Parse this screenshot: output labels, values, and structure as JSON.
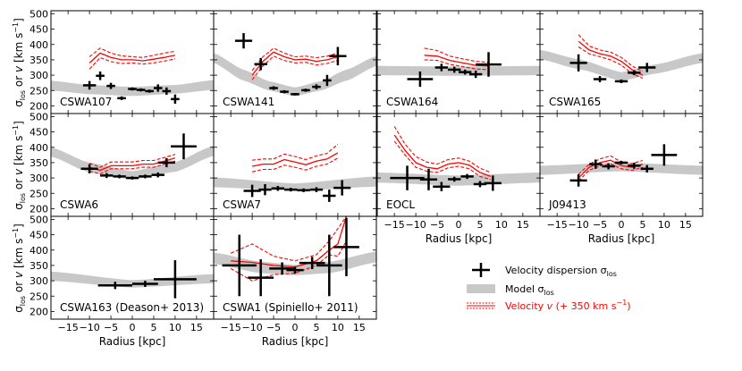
{
  "figure": {
    "y_axis_label": "σlos or v [km s⁻¹]",
    "y_axis_label_parts": {
      "sigma": "σ",
      "sigma_sub": "los",
      "or": " or ",
      "v": "v",
      "unit_open": " [km s",
      "unit_exp": "−1",
      "unit_close": "]"
    },
    "x_axis_label": "Radius [kpc]",
    "xlim": [
      -19,
      19
    ],
    "ylim": [
      175,
      510
    ],
    "x_ticks": [
      -15,
      -10,
      -5,
      0,
      5,
      10,
      15
    ],
    "y_ticks": [
      200,
      250,
      300,
      350,
      400,
      450,
      500
    ],
    "colors": {
      "model_band": "#c8c8c8",
      "velocity": "#ff0000",
      "dispersion": "#000000"
    }
  },
  "legend": {
    "items": [
      {
        "key": "dispersion",
        "label": "Velocity dispersion σ",
        "sub": "los"
      },
      {
        "key": "model",
        "label": "Model σ",
        "sub": "los"
      },
      {
        "key": "velocity",
        "label": "Velocity ",
        "italic": "v",
        "suffix": " (+ 350 km s",
        "exp": "−1",
        "close": ")"
      }
    ]
  },
  "chart_data": [
    {
      "name": "CSWA107",
      "type": "scatter",
      "dispersion": [
        {
          "x": -10,
          "y": 267,
          "xerr": 1.5,
          "yerr": 14
        },
        {
          "x": -7.5,
          "y": 298,
          "xerr": 1,
          "yerr": 14
        },
        {
          "x": -5,
          "y": 265,
          "xerr": 1,
          "yerr": 10
        },
        {
          "x": -2.5,
          "y": 225,
          "xerr": 1,
          "yerr": 6
        },
        {
          "x": 0,
          "y": 255,
          "xerr": 1,
          "yerr": 5
        },
        {
          "x": 2,
          "y": 252,
          "xerr": 1,
          "yerr": 5
        },
        {
          "x": 4,
          "y": 248,
          "xerr": 1,
          "yerr": 5
        },
        {
          "x": 6,
          "y": 258,
          "xerr": 1,
          "yerr": 12
        },
        {
          "x": 8,
          "y": 248,
          "xerr": 1,
          "yerr": 12
        },
        {
          "x": 10,
          "y": 222,
          "xerr": 1,
          "yerr": 15
        }
      ],
      "model": [
        {
          "x": -19,
          "lo": 250,
          "hi": 282
        },
        {
          "x": -10,
          "lo": 238,
          "hi": 268
        },
        {
          "x": 0,
          "lo": 232,
          "hi": 262
        },
        {
          "x": 10,
          "lo": 240,
          "hi": 268
        },
        {
          "x": 19,
          "lo": 252,
          "hi": 284
        }
      ],
      "velocity": {
        "x": [
          -10,
          -7.5,
          -5,
          -2.5,
          0,
          2.5,
          5,
          7.5,
          10
        ],
        "mid": [
          340,
          372,
          358,
          350,
          350,
          347,
          352,
          358,
          365
        ],
        "lo": [
          320,
          357,
          344,
          338,
          340,
          336,
          340,
          346,
          353
        ],
        "hi": [
          360,
          388,
          372,
          363,
          360,
          358,
          365,
          372,
          378
        ]
      }
    },
    {
      "name": "CSWA141",
      "type": "scatter",
      "dispersion": [
        {
          "x": -12,
          "y": 412,
          "xerr": 2,
          "yerr": 25
        },
        {
          "x": -8,
          "y": 336,
          "xerr": 1.5,
          "yerr": 20
        },
        {
          "x": -5,
          "y": 258,
          "xerr": 1,
          "yerr": 6
        },
        {
          "x": -2.5,
          "y": 246,
          "xerr": 1,
          "yerr": 5
        },
        {
          "x": 0,
          "y": 238,
          "xerr": 1,
          "yerr": 4
        },
        {
          "x": 2.5,
          "y": 251,
          "xerr": 1,
          "yerr": 5
        },
        {
          "x": 5,
          "y": 262,
          "xerr": 1,
          "yerr": 8
        },
        {
          "x": 7.5,
          "y": 283,
          "xerr": 1,
          "yerr": 18
        },
        {
          "x": 10,
          "y": 362,
          "xerr": 2,
          "yerr": 30
        }
      ],
      "model": [
        {
          "x": -19,
          "lo": 340,
          "hi": 372
        },
        {
          "x": -12,
          "lo": 282,
          "hi": 318
        },
        {
          "x": -6,
          "lo": 250,
          "hi": 280
        },
        {
          "x": 0,
          "lo": 232,
          "hi": 260
        },
        {
          "x": 6,
          "lo": 250,
          "hi": 280
        },
        {
          "x": 12,
          "lo": 282,
          "hi": 318
        },
        {
          "x": 19,
          "lo": 330,
          "hi": 362
        }
      ],
      "velocity": {
        "x": [
          -10,
          -7.5,
          -5,
          -2.5,
          0,
          2.5,
          5,
          7.5,
          10
        ],
        "mid": [
          300,
          345,
          375,
          360,
          350,
          352,
          345,
          350,
          360
        ],
        "lo": [
          285,
          330,
          362,
          348,
          340,
          342,
          333,
          338,
          348
        ],
        "hi": [
          315,
          360,
          388,
          372,
          360,
          362,
          357,
          362,
          372
        ]
      }
    },
    {
      "name": "CSWA164",
      "type": "scatter",
      "dispersion": [
        {
          "x": -9,
          "y": 287,
          "xerr": 3,
          "yerr": 25
        },
        {
          "x": -4,
          "y": 325,
          "xerr": 1.5,
          "yerr": 12
        },
        {
          "x": -1,
          "y": 318,
          "xerr": 1.5,
          "yerr": 10
        },
        {
          "x": 1.5,
          "y": 310,
          "xerr": 1.5,
          "yerr": 8
        },
        {
          "x": 4,
          "y": 303,
          "xerr": 1.5,
          "yerr": 12
        },
        {
          "x": 7,
          "y": 335,
          "xerr": 3,
          "yerr": 40
        }
      ],
      "model": [
        {
          "x": -19,
          "lo": 300,
          "hi": 330
        },
        {
          "x": 0,
          "lo": 298,
          "hi": 328
        },
        {
          "x": 19,
          "lo": 300,
          "hi": 330
        }
      ],
      "velocity": {
        "x": [
          -8,
          -5,
          -2,
          1,
          4,
          7
        ],
        "mid": [
          365,
          362,
          348,
          340,
          332,
          330
        ],
        "lo": [
          350,
          348,
          335,
          328,
          320,
          318
        ],
        "hi": [
          388,
          380,
          362,
          353,
          345,
          342
        ]
      }
    },
    {
      "name": "CSWA165",
      "type": "scatter",
      "dispersion": [
        {
          "x": -10,
          "y": 340,
          "xerr": 2,
          "yerr": 28
        },
        {
          "x": -5,
          "y": 287,
          "xerr": 1.5,
          "yerr": 10
        },
        {
          "x": 0,
          "y": 280,
          "xerr": 1.5,
          "yerr": 6
        },
        {
          "x": 3,
          "y": 308,
          "xerr": 1.5,
          "yerr": 8
        },
        {
          "x": 6,
          "y": 325,
          "xerr": 2,
          "yerr": 15
        }
      ],
      "model": [
        {
          "x": -19,
          "lo": 352,
          "hi": 382
        },
        {
          "x": -10,
          "lo": 320,
          "hi": 352
        },
        {
          "x": 0,
          "lo": 282,
          "hi": 310
        },
        {
          "x": 8,
          "lo": 305,
          "hi": 335
        },
        {
          "x": 19,
          "lo": 340,
          "hi": 372
        }
      ],
      "velocity": {
        "x": [
          -10,
          -7.5,
          -5,
          -2.5,
          0,
          2.5,
          5
        ],
        "mid": [
          410,
          382,
          370,
          362,
          345,
          318,
          300
        ],
        "lo": [
          392,
          370,
          360,
          350,
          333,
          305,
          290
        ],
        "hi": [
          432,
          395,
          382,
          375,
          358,
          330,
          312
        ]
      }
    },
    {
      "name": "CSWA6",
      "type": "scatter",
      "dispersion": [
        {
          "x": -10,
          "y": 330,
          "xerr": 2,
          "yerr": 15
        },
        {
          "x": -6,
          "y": 308,
          "xerr": 1.5,
          "yerr": 8
        },
        {
          "x": -3,
          "y": 305,
          "xerr": 1.5,
          "yerr": 6
        },
        {
          "x": 0,
          "y": 300,
          "xerr": 1.5,
          "yerr": 5
        },
        {
          "x": 3,
          "y": 305,
          "xerr": 1.5,
          "yerr": 6
        },
        {
          "x": 6,
          "y": 310,
          "xerr": 1.5,
          "yerr": 8
        },
        {
          "x": 8,
          "y": 350,
          "xerr": 2,
          "yerr": 15
        },
        {
          "x": 12,
          "y": 403,
          "xerr": 3,
          "yerr": 42
        }
      ],
      "model": [
        {
          "x": -19,
          "lo": 370,
          "hi": 400
        },
        {
          "x": -10,
          "lo": 318,
          "hi": 350
        },
        {
          "x": 0,
          "lo": 295,
          "hi": 322
        },
        {
          "x": 10,
          "lo": 320,
          "hi": 352
        },
        {
          "x": 19,
          "lo": 372,
          "hi": 405
        }
      ],
      "velocity": {
        "x": [
          -10,
          -7.5,
          -5,
          -2.5,
          0,
          2.5,
          5,
          7.5,
          10
        ],
        "mid": [
          335,
          325,
          340,
          340,
          340,
          345,
          345,
          355,
          365
        ],
        "lo": [
          322,
          313,
          330,
          330,
          330,
          335,
          335,
          345,
          355
        ],
        "hi": [
          348,
          335,
          352,
          352,
          352,
          357,
          357,
          367,
          377
        ]
      }
    },
    {
      "name": "CSWA7",
      "type": "scatter",
      "dispersion": [
        {
          "x": -10,
          "y": 258,
          "xerr": 2,
          "yerr": 20
        },
        {
          "x": -7,
          "y": 262,
          "xerr": 1.5,
          "yerr": 18
        },
        {
          "x": -4,
          "y": 266,
          "xerr": 1.5,
          "yerr": 8
        },
        {
          "x": -1,
          "y": 262,
          "xerr": 1.5,
          "yerr": 6
        },
        {
          "x": 2,
          "y": 260,
          "xerr": 1.5,
          "yerr": 6
        },
        {
          "x": 5,
          "y": 262,
          "xerr": 1.5,
          "yerr": 8
        },
        {
          "x": 8,
          "y": 242,
          "xerr": 1.5,
          "yerr": 20
        },
        {
          "x": 11,
          "y": 268,
          "xerr": 2,
          "yerr": 25
        }
      ],
      "model": [
        {
          "x": -19,
          "lo": 270,
          "hi": 302
        },
        {
          "x": 0,
          "lo": 258,
          "hi": 282
        },
        {
          "x": 19,
          "lo": 272,
          "hi": 305
        }
      ],
      "velocity": {
        "x": [
          -10,
          -7.5,
          -5,
          -2.5,
          0,
          2.5,
          5,
          7.5,
          10
        ],
        "mid": [
          338,
          345,
          345,
          360,
          352,
          343,
          355,
          362,
          382
        ],
        "lo": [
          320,
          328,
          328,
          342,
          335,
          326,
          338,
          345,
          365
        ],
        "hi": [
          358,
          362,
          362,
          378,
          370,
          360,
          372,
          380,
          410
        ]
      }
    },
    {
      "name": "EOCL",
      "type": "scatter",
      "dispersion": [
        {
          "x": -12,
          "y": 300,
          "xerr": 4,
          "yerr": 40
        },
        {
          "x": -7,
          "y": 295,
          "xerr": 2,
          "yerr": 35
        },
        {
          "x": -4,
          "y": 272,
          "xerr": 2,
          "yerr": 15
        },
        {
          "x": -1,
          "y": 296,
          "xerr": 1.5,
          "yerr": 8
        },
        {
          "x": 2,
          "y": 305,
          "xerr": 1.5,
          "yerr": 8
        },
        {
          "x": 5,
          "y": 280,
          "xerr": 1.5,
          "yerr": 10
        },
        {
          "x": 8,
          "y": 283,
          "xerr": 2,
          "yerr": 25
        }
      ],
      "model": [
        {
          "x": -19,
          "lo": 285,
          "hi": 318
        },
        {
          "x": 0,
          "lo": 275,
          "hi": 308
        },
        {
          "x": 19,
          "lo": 285,
          "hi": 318
        }
      ],
      "velocity": {
        "x": [
          -15,
          -12.5,
          -10,
          -7.5,
          -5,
          -2.5,
          0,
          2.5,
          5,
          7.5
        ],
        "mid": [
          440,
          390,
          350,
          335,
          330,
          345,
          350,
          342,
          318,
          305
        ],
        "lo": [
          420,
          375,
          335,
          322,
          318,
          333,
          338,
          330,
          305,
          295
        ],
        "hi": [
          468,
          410,
          370,
          352,
          345,
          360,
          365,
          355,
          332,
          318
        ]
      }
    },
    {
      "name": "J09413",
      "type": "scatter",
      "dispersion": [
        {
          "x": -10,
          "y": 292,
          "xerr": 2,
          "yerr": 20
        },
        {
          "x": -6,
          "y": 345,
          "xerr": 1.5,
          "yerr": 15
        },
        {
          "x": -3,
          "y": 338,
          "xerr": 1.5,
          "yerr": 10
        },
        {
          "x": 0,
          "y": 350,
          "xerr": 1.5,
          "yerr": 6
        },
        {
          "x": 3,
          "y": 340,
          "xerr": 1.5,
          "yerr": 10
        },
        {
          "x": 6,
          "y": 330,
          "xerr": 1.5,
          "yerr": 12
        },
        {
          "x": 10,
          "y": 375,
          "xerr": 3,
          "yerr": 35
        }
      ],
      "model": [
        {
          "x": -19,
          "lo": 310,
          "hi": 340
        },
        {
          "x": 0,
          "lo": 322,
          "hi": 350
        },
        {
          "x": 19,
          "lo": 310,
          "hi": 340
        }
      ],
      "velocity": {
        "x": [
          -10,
          -7.5,
          -5,
          -2.5,
          0,
          2.5,
          5
        ],
        "mid": [
          300,
          335,
          350,
          358,
          340,
          335,
          345
        ],
        "lo": [
          290,
          325,
          340,
          346,
          330,
          325,
          335
        ],
        "hi": [
          312,
          345,
          362,
          372,
          352,
          347,
          357
        ]
      }
    },
    {
      "name": "CSWA163 (Deason+ 2013)",
      "type": "scatter",
      "dispersion": [
        {
          "x": -4,
          "y": 285,
          "xerr": 4,
          "yerr": 12
        },
        {
          "x": 3,
          "y": 290,
          "xerr": 3,
          "yerr": 10
        },
        {
          "x": 10,
          "y": 305,
          "xerr": 5,
          "yerr": 62
        }
      ],
      "model": [
        {
          "x": -19,
          "lo": 300,
          "hi": 330
        },
        {
          "x": 0,
          "lo": 278,
          "hi": 302
        },
        {
          "x": 19,
          "lo": 292,
          "hi": 322
        }
      ],
      "velocity": null
    },
    {
      "name": "CSWA1 (Spiniello+ 2011)",
      "type": "scatter",
      "dispersion": [
        {
          "x": -13,
          "y": 350,
          "xerr": 4,
          "yerr": 100
        },
        {
          "x": -8,
          "y": 310,
          "xerr": 3,
          "yerr": 60
        },
        {
          "x": -3,
          "y": 340,
          "xerr": 3,
          "yerr": 20
        },
        {
          "x": 0,
          "y": 335,
          "xerr": 2,
          "yerr": 12
        },
        {
          "x": 4,
          "y": 358,
          "xerr": 3,
          "yerr": 20
        },
        {
          "x": 8,
          "y": 350,
          "xerr": 3,
          "yerr": 100
        },
        {
          "x": 12,
          "y": 410,
          "xerr": 3,
          "yerr": 95
        }
      ],
      "model": [
        {
          "x": -19,
          "lo": 355,
          "hi": 392
        },
        {
          "x": -8,
          "lo": 325,
          "hi": 362
        },
        {
          "x": 0,
          "lo": 318,
          "hi": 352
        },
        {
          "x": 8,
          "lo": 325,
          "hi": 362
        },
        {
          "x": 19,
          "lo": 360,
          "hi": 395
        }
      ],
      "velocity": {
        "x": [
          -15,
          -10,
          -5,
          0,
          5,
          8,
          10,
          12
        ],
        "mid": [
          365,
          360,
          350,
          345,
          365,
          400,
          420,
          510
        ],
        "lo": [
          340,
          300,
          320,
          325,
          350,
          385,
          380,
          430
        ],
        "hi": [
          390,
          420,
          380,
          365,
          385,
          430,
          470,
          510
        ]
      }
    }
  ]
}
